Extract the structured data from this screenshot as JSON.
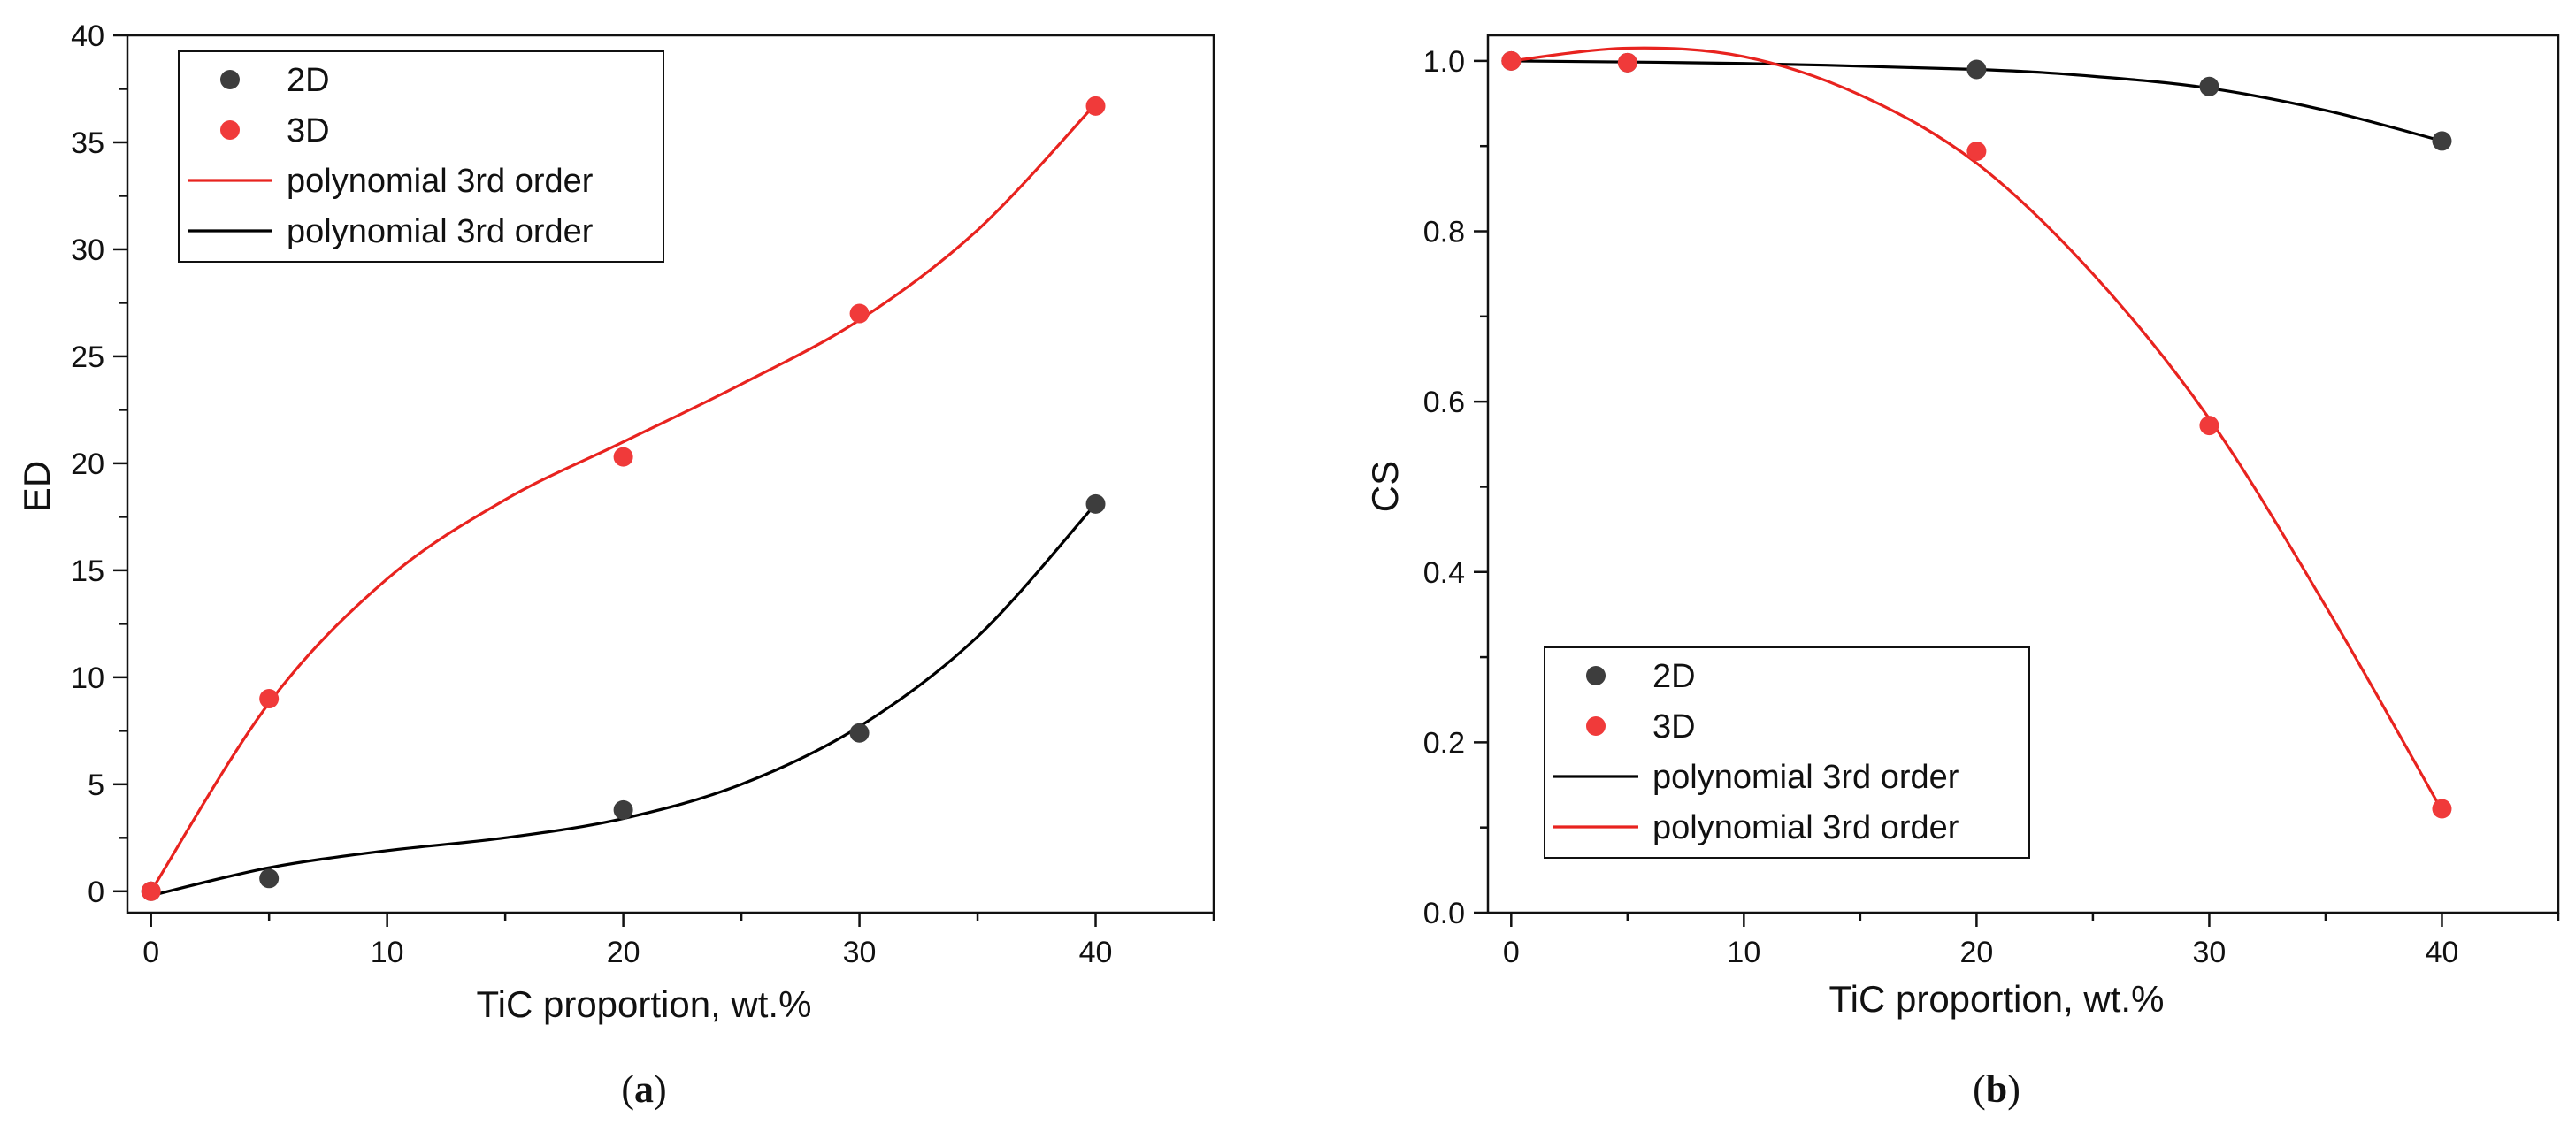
{
  "chart_data": [
    {
      "type": "scatter",
      "panel": "a",
      "caption": {
        "open": "(",
        "letter": "a",
        "close": ")"
      },
      "xlabel": "TiC proportion, wt.%",
      "ylabel": "ED",
      "xlim": [
        -1,
        45
      ],
      "ylim": [
        -1,
        40
      ],
      "xticks": [
        0,
        10,
        20,
        30,
        40
      ],
      "yticks": [
        0,
        5,
        10,
        15,
        20,
        25,
        30,
        35,
        40
      ],
      "grid": false,
      "legend_position": "top-left",
      "legend": [
        {
          "kind": "marker",
          "label": "2D",
          "color": "#3d3d3d"
        },
        {
          "kind": "marker",
          "label": "3D",
          "color": "#f03a3a"
        },
        {
          "kind": "line",
          "label": "polynomial 3rd order",
          "color": "#e8231f"
        },
        {
          "kind": "line",
          "label": "polynomial 3rd order",
          "color": "#000000"
        }
      ],
      "series": [
        {
          "name": "2D",
          "kind": "scatter",
          "color": "#3d3d3d",
          "x": [
            0,
            5,
            20,
            30,
            40
          ],
          "y": [
            0,
            0.6,
            3.8,
            7.4,
            18.1
          ]
        },
        {
          "name": "3D",
          "kind": "scatter",
          "color": "#f03a3a",
          "x": [
            0,
            5,
            20,
            30,
            40
          ],
          "y": [
            0,
            9.0,
            20.3,
            27.0,
            36.7
          ]
        }
      ],
      "fits": [
        {
          "name": "polynomial 3rd order",
          "color": "#000000",
          "x": [
            0,
            5,
            10,
            15,
            20,
            25,
            30,
            35,
            40
          ],
          "y": [
            -0.2,
            1.1,
            1.9,
            2.5,
            3.4,
            5.0,
            7.7,
            11.9,
            18.1
          ]
        },
        {
          "name": "polynomial 3rd order",
          "color": "#e8231f",
          "x": [
            0,
            5,
            10,
            15,
            20,
            25,
            30,
            35,
            40
          ],
          "y": [
            0,
            8.8,
            14.6,
            18.3,
            21.0,
            23.7,
            26.7,
            30.9,
            36.8
          ]
        }
      ]
    },
    {
      "type": "scatter",
      "panel": "b",
      "caption": {
        "open": "(",
        "letter": "b",
        "close": ")"
      },
      "xlabel": "TiC proportion, wt.%",
      "ylabel": "CS",
      "xlim": [
        -1,
        45
      ],
      "ylim": [
        0,
        1.03
      ],
      "xticks": [
        0,
        10,
        20,
        30,
        40
      ],
      "yticks": [
        0.0,
        0.2,
        0.4,
        0.6,
        0.8,
        1.0
      ],
      "ytick_labels": [
        "0.0",
        "0.2",
        "0.4",
        "0.6",
        "0.8",
        "1.0"
      ],
      "grid": false,
      "legend_position": "bottom-left",
      "legend": [
        {
          "kind": "marker",
          "label": "2D",
          "color": "#3d3d3d"
        },
        {
          "kind": "marker",
          "label": "3D",
          "color": "#f03a3a"
        },
        {
          "kind": "line",
          "label": "polynomial 3rd order",
          "color": "#000000"
        },
        {
          "kind": "line",
          "label": "polynomial 3rd order",
          "color": "#e8231f"
        }
      ],
      "series": [
        {
          "name": "2D",
          "kind": "scatter",
          "color": "#3d3d3d",
          "x": [
            0,
            5,
            20,
            30,
            40
          ],
          "y": [
            1.0,
            0.998,
            0.99,
            0.97,
            0.906
          ]
        },
        {
          "name": "3D",
          "kind": "scatter",
          "color": "#f03a3a",
          "x": [
            0,
            5,
            20,
            30,
            40
          ],
          "y": [
            1.0,
            0.998,
            0.894,
            0.572,
            0.122
          ]
        }
      ],
      "fits": [
        {
          "name": "polynomial 3rd order",
          "color": "#000000",
          "x": [
            0,
            10,
            20,
            25,
            30,
            35,
            40
          ],
          "y": [
            1.0,
            0.997,
            0.99,
            0.982,
            0.968,
            0.942,
            0.906
          ]
        },
        {
          "name": "polynomial 3rd order",
          "color": "#e8231f",
          "x": [
            0,
            5,
            10,
            15,
            20,
            25,
            30,
            35,
            40
          ],
          "y": [
            1.0,
            1.015,
            1.005,
            0.96,
            0.88,
            0.75,
            0.58,
            0.36,
            0.12
          ]
        }
      ]
    }
  ]
}
